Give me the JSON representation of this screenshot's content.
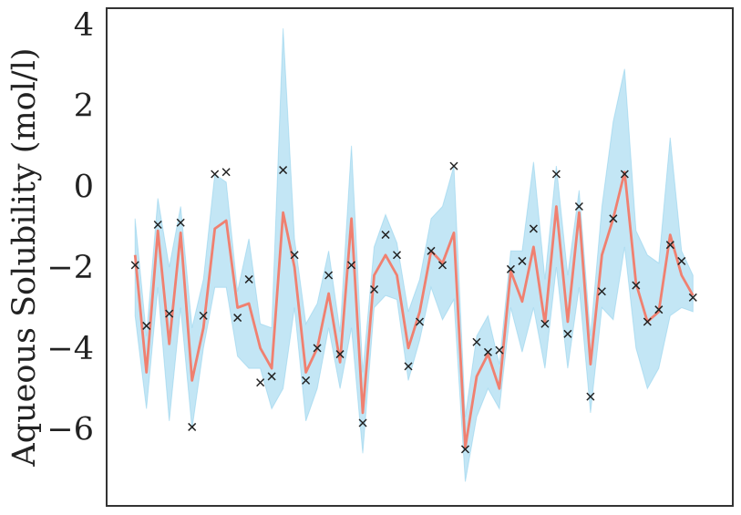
{
  "chart_data": {
    "type": "line",
    "ylabel": "Aqueous Solubility (mol/l)",
    "xlabel": "",
    "ylim": [
      -7.9,
      4.4
    ],
    "xlim": [
      -2.5,
      52.5
    ],
    "yticks": [
      -6,
      -4,
      -2,
      0,
      2,
      4
    ],
    "ytick_labels": [
      "−6",
      "−4",
      "−2",
      "0",
      "2",
      "4"
    ],
    "x_ticks_visible": false,
    "grid": false,
    "legend": "none",
    "colors": {
      "mean": "#f08070",
      "band": "#87ceeb",
      "observed": "#222222",
      "frame": "#333333"
    },
    "series": [
      {
        "kind": "line",
        "values": [
          -1.7,
          -4.6,
          -1.1,
          -3.9,
          -1.15,
          -4.8,
          -3.5,
          -1.05,
          -0.85,
          -3.0,
          -2.9,
          -4.0,
          -4.5,
          -0.65,
          -2.0,
          -4.6,
          -4.0,
          -2.65,
          -4.35,
          -0.8,
          -5.6,
          -2.2,
          -1.7,
          -2.2,
          -4.0,
          -3.1,
          -1.6,
          -1.9,
          -1.15,
          -6.45,
          -4.7,
          -4.15,
          -5.0,
          -2.1,
          -2.85,
          -1.5,
          -3.4,
          -0.5,
          -3.35,
          -0.65,
          -4.4,
          -1.7,
          -0.8,
          0.35,
          -2.4,
          -3.35,
          -3.1,
          -1.2,
          -2.2,
          -2.7
        ],
        "band_lower": [
          -3.2,
          -5.5,
          -2.5,
          -5.8,
          -3.0,
          -6.0,
          -4.0,
          -2.5,
          -2.5,
          -4.2,
          -4.5,
          -4.5,
          -5.5,
          -5.0,
          -3.0,
          -5.8,
          -5.0,
          -3.5,
          -5.0,
          -3.5,
          -6.6,
          -3.0,
          -2.7,
          -2.8,
          -4.8,
          -3.8,
          -2.5,
          -3.3,
          -2.8,
          -7.3,
          -5.7,
          -5.0,
          -5.5,
          -3.0,
          -4.1,
          -3.0,
          -4.5,
          -2.0,
          -4.5,
          -2.5,
          -5.6,
          -3.0,
          -3.3,
          -1.5,
          -4.0,
          -5.0,
          -4.5,
          -3.2,
          -3.0,
          -3.1
        ],
        "band_upper": [
          -0.8,
          -3.7,
          -0.3,
          -2.0,
          -0.5,
          -3.5,
          -2.3,
          0.3,
          0.1,
          -2.6,
          -1.3,
          -3.4,
          -3.5,
          3.9,
          -1.3,
          -3.4,
          -2.9,
          -1.6,
          -3.6,
          1.0,
          -4.6,
          -1.5,
          -0.7,
          -1.4,
          -3.1,
          -2.3,
          -0.8,
          -0.5,
          0.5,
          -5.7,
          -3.7,
          -3.2,
          -4.4,
          -1.6,
          -1.6,
          0.6,
          -2.3,
          0.5,
          -2.2,
          -0.1,
          -3.7,
          -0.5,
          1.6,
          2.9,
          -1.1,
          -1.7,
          -1.9,
          1.2,
          -1.6,
          -2.2
        ]
      },
      {
        "kind": "scatter",
        "marker": "x",
        "values": [
          -1.95,
          -3.45,
          -0.95,
          -3.15,
          -0.9,
          -5.95,
          -3.2,
          0.3,
          0.35,
          -3.25,
          -2.3,
          -4.85,
          -4.7,
          0.4,
          -1.7,
          -4.8,
          -4.0,
          -2.2,
          -4.15,
          -1.95,
          -5.85,
          -2.55,
          -1.2,
          -1.7,
          -4.45,
          -3.35,
          -1.6,
          -1.95,
          0.5,
          -6.5,
          -3.85,
          -4.1,
          -4.05,
          -2.05,
          -1.85,
          -1.05,
          -3.4,
          0.3,
          -3.65,
          -0.5,
          -5.2,
          -2.6,
          -0.8,
          0.3,
          -2.45,
          -3.35,
          -3.05,
          -1.45,
          -1.85,
          -2.75
        ]
      }
    ]
  }
}
